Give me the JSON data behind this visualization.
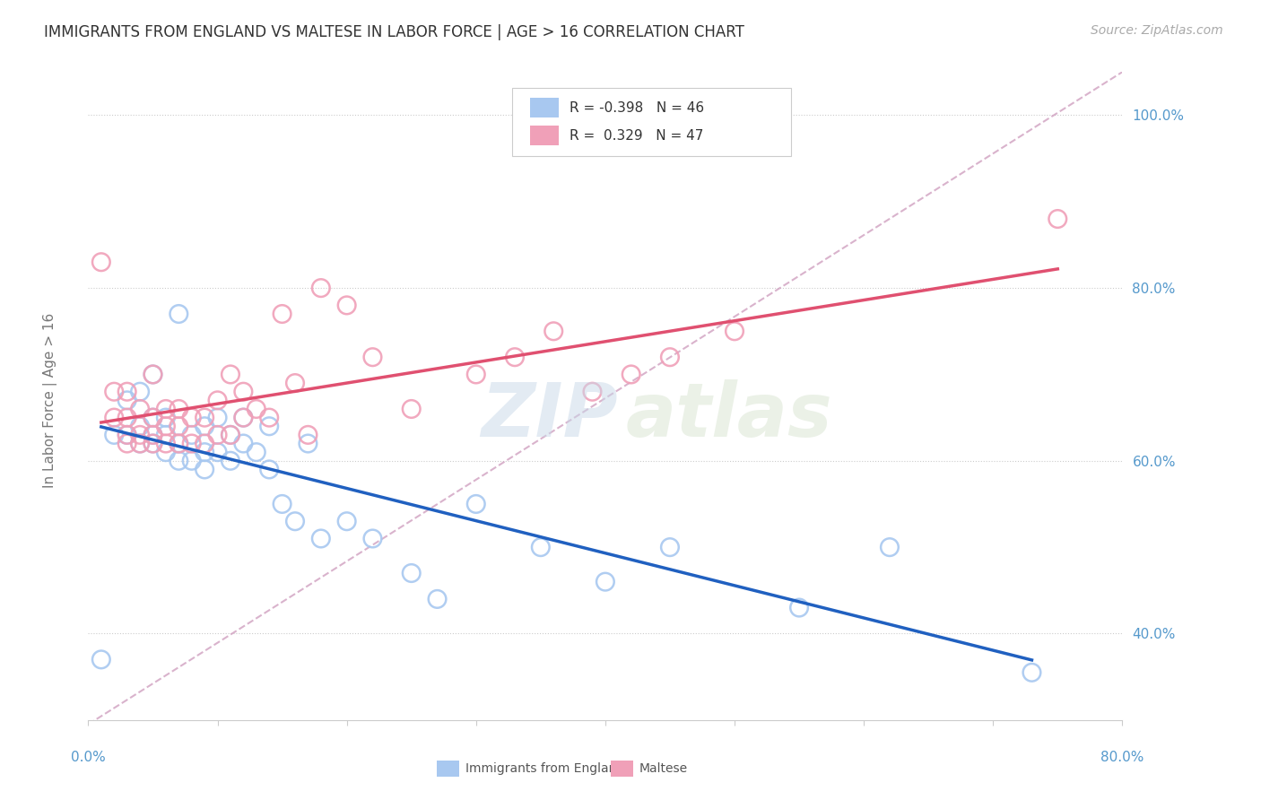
{
  "title": "IMMIGRANTS FROM ENGLAND VS MALTESE IN LABOR FORCE | AGE > 16 CORRELATION CHART",
  "source": "Source: ZipAtlas.com",
  "ylabel": "In Labor Force | Age > 16",
  "legend_label1": "Immigrants from England",
  "legend_label2": "Maltese",
  "R1": -0.398,
  "N1": 46,
  "R2": 0.329,
  "N2": 47,
  "color_england": "#a8c8f0",
  "color_maltese": "#f0a0b8",
  "color_england_line": "#2060c0",
  "color_maltese_line": "#e05070",
  "color_ref_line": "#d0a0c0",
  "england_x": [
    0.01,
    0.02,
    0.03,
    0.03,
    0.04,
    0.04,
    0.04,
    0.05,
    0.05,
    0.05,
    0.05,
    0.06,
    0.06,
    0.06,
    0.07,
    0.07,
    0.07,
    0.08,
    0.08,
    0.09,
    0.09,
    0.09,
    0.1,
    0.1,
    0.11,
    0.11,
    0.12,
    0.12,
    0.13,
    0.14,
    0.14,
    0.15,
    0.16,
    0.17,
    0.18,
    0.2,
    0.22,
    0.25,
    0.27,
    0.3,
    0.35,
    0.4,
    0.45,
    0.55,
    0.62,
    0.73
  ],
  "england_y": [
    0.37,
    0.63,
    0.63,
    0.67,
    0.62,
    0.64,
    0.68,
    0.62,
    0.63,
    0.65,
    0.7,
    0.61,
    0.63,
    0.65,
    0.6,
    0.62,
    0.77,
    0.6,
    0.63,
    0.59,
    0.61,
    0.64,
    0.61,
    0.65,
    0.6,
    0.63,
    0.62,
    0.65,
    0.61,
    0.59,
    0.64,
    0.55,
    0.53,
    0.62,
    0.51,
    0.53,
    0.51,
    0.47,
    0.44,
    0.55,
    0.5,
    0.46,
    0.5,
    0.43,
    0.5,
    0.355
  ],
  "maltese_x": [
    0.01,
    0.02,
    0.02,
    0.03,
    0.03,
    0.03,
    0.03,
    0.04,
    0.04,
    0.04,
    0.05,
    0.05,
    0.05,
    0.05,
    0.06,
    0.06,
    0.06,
    0.07,
    0.07,
    0.07,
    0.08,
    0.08,
    0.09,
    0.09,
    0.1,
    0.1,
    0.11,
    0.11,
    0.12,
    0.12,
    0.13,
    0.14,
    0.15,
    0.16,
    0.17,
    0.18,
    0.2,
    0.22,
    0.25,
    0.3,
    0.33,
    0.36,
    0.39,
    0.42,
    0.45,
    0.5,
    0.75
  ],
  "maltese_y": [
    0.83,
    0.65,
    0.68,
    0.62,
    0.63,
    0.65,
    0.68,
    0.62,
    0.63,
    0.66,
    0.62,
    0.63,
    0.65,
    0.7,
    0.62,
    0.64,
    0.66,
    0.62,
    0.64,
    0.66,
    0.62,
    0.65,
    0.62,
    0.65,
    0.63,
    0.67,
    0.63,
    0.7,
    0.65,
    0.68,
    0.66,
    0.65,
    0.77,
    0.69,
    0.63,
    0.8,
    0.78,
    0.72,
    0.66,
    0.7,
    0.72,
    0.75,
    0.68,
    0.7,
    0.72,
    0.75,
    0.88
  ],
  "xlim": [
    0.0,
    0.8
  ],
  "ylim": [
    0.3,
    1.05
  ],
  "ref_line_x": [
    0.0,
    0.8
  ],
  "ref_line_y": [
    0.295,
    1.05
  ],
  "figsize": [
    14.06,
    8.92
  ],
  "dpi": 100
}
